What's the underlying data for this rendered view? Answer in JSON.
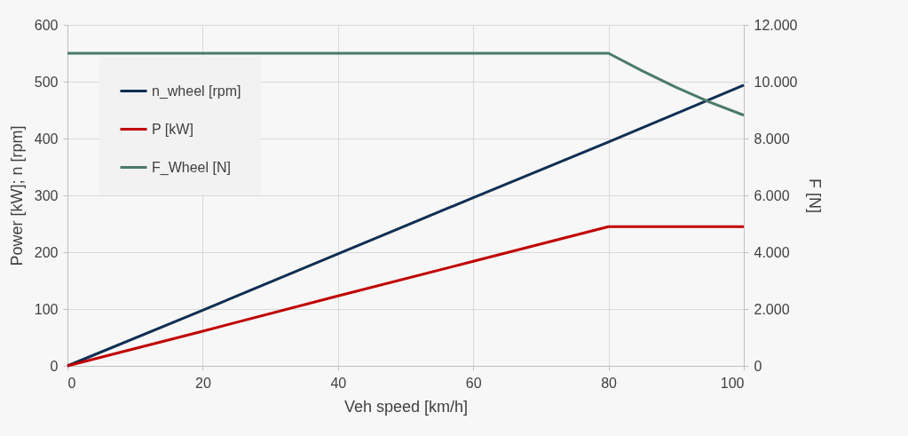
{
  "chart_data": {
    "type": "line",
    "xlabel": "Veh speed [km/h]",
    "ylabel": "Power [kW]; n [rpm]",
    "y2label": "F [N]",
    "x": [
      0,
      20,
      40,
      60,
      80,
      85,
      90,
      95,
      100
    ],
    "series": [
      {
        "name": "n_wheel [rpm]",
        "color": "#0e2f52",
        "values": [
          0,
          98,
          197,
          296,
          394,
          419,
          444,
          469,
          494
        ]
      },
      {
        "name": "P [kW]",
        "color": "#c00000",
        "values": [
          0,
          61,
          123,
          184,
          245,
          245,
          245,
          245,
          245
        ]
      },
      {
        "name": "F_Wheel [N]",
        "color": "#4a7a6a",
        "axis": "y2",
        "values": [
          11000,
          11000,
          11000,
          11000,
          11000,
          10380,
          9800,
          9280,
          8820
        ]
      }
    ],
    "xlim": [
      0,
      100
    ],
    "xticks": [
      0,
      20,
      40,
      60,
      80,
      100
    ],
    "ylim": [
      0,
      600
    ],
    "yticks": [
      0,
      100,
      200,
      300,
      400,
      500,
      600
    ],
    "y2lim": [
      0,
      12000
    ],
    "y2ticks": [
      0,
      {
        "value": 2000,
        "label": "2.000"
      },
      {
        "value": 4000,
        "label": "4.000"
      },
      {
        "value": 6000,
        "label": "6.000"
      },
      {
        "value": 8000,
        "label": "8.000"
      },
      {
        "value": 10000,
        "label": "10.000"
      },
      {
        "value": 12000,
        "label": "12.000"
      }
    ],
    "grid": true,
    "legend": "top left",
    "line_style": "solid",
    "marker": "none"
  }
}
